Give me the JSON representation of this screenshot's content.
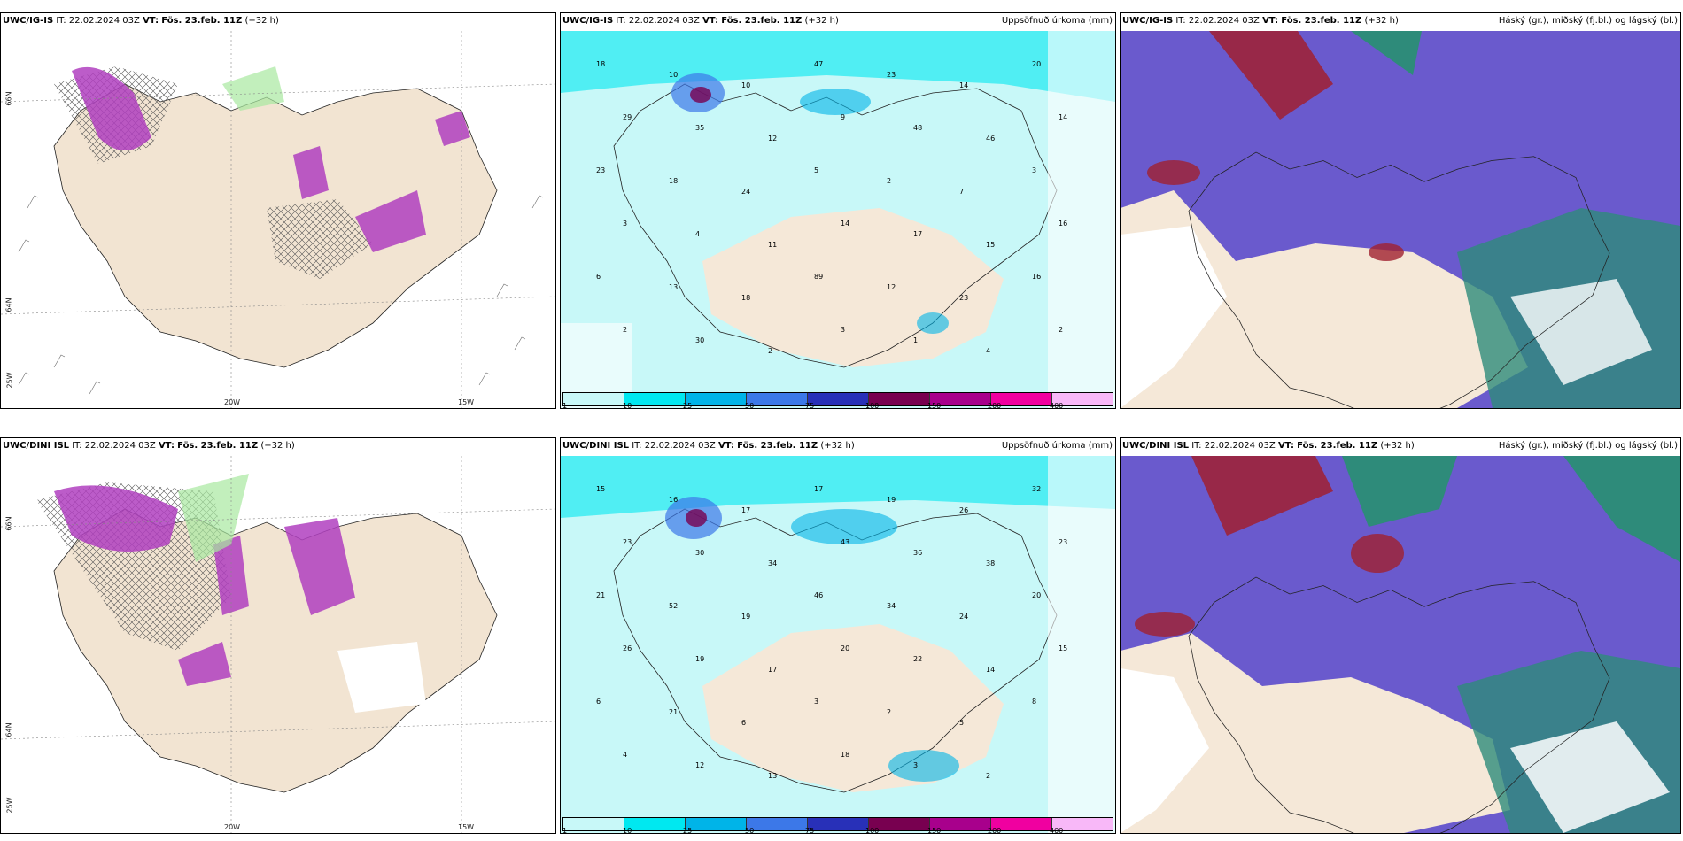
{
  "panels": [
    {
      "model": "UWC/IG-IS",
      "it": "IT: 22.02.2024 03Z",
      "vt_label": "VT:",
      "vt": "Fös. 23.feb. 11Z",
      "lead": "(+32 h)",
      "right": ""
    },
    {
      "model": "UWC/IG-IS",
      "it": "IT: 22.02.2024 03Z",
      "vt_label": "VT:",
      "vt": "Fös. 23.feb. 11Z",
      "lead": "(+32 h)",
      "right": "Uppsöfnuð úrkoma (mm)"
    },
    {
      "model": "UWC/IG-IS",
      "it": "IT: 22.02.2024 03Z",
      "vt_label": "VT:",
      "vt": "Fös. 23.feb. 11Z",
      "lead": "(+32 h)",
      "right": "Háský (gr.), miðský (fj.bl.) og lágský (bl.)"
    },
    {
      "model": "UWC/DINI ISL",
      "it": "IT: 22.02.2024 03Z",
      "vt_label": "VT:",
      "vt": "Fös. 23.feb. 11Z",
      "lead": "(+32 h)",
      "right": ""
    },
    {
      "model": "UWC/DINI ISL",
      "it": "IT: 22.02.2024 03Z",
      "vt_label": "VT:",
      "vt": "Fös. 23.feb. 11Z",
      "lead": "(+32 h)",
      "right": "Uppsöfnuð úrkoma (mm)"
    },
    {
      "model": "UWC/DINI ISL",
      "it": "IT: 22.02.2024 03Z",
      "vt_label": "VT:",
      "vt": "Fös. 23.feb. 11Z",
      "lead": "(+32 h)",
      "right": "Háský (gr.), miðský (fj.bl.) og lágský (bl.)"
    }
  ],
  "axis_labels": {
    "lat66": "66N",
    "lat64": "64N",
    "lon25": "25W",
    "lon20": "20W",
    "lon15": "15W"
  },
  "colorbar": {
    "labels": [
      "1",
      "10",
      "25",
      "50",
      "75",
      "100",
      "150",
      "200",
      "400"
    ],
    "colors": [
      "#c8f8f8",
      "#00e8f0",
      "#00b4e8",
      "#3c78e8",
      "#2830b8",
      "#780050",
      "#a8008c",
      "#f000a0",
      "#f8b8f8"
    ]
  },
  "precip_values_top": [
    "18",
    "10",
    "10",
    "47",
    "23",
    "14",
    "20",
    "29",
    "35",
    "12",
    "9",
    "48",
    "46",
    "14",
    "23",
    "18",
    "24",
    "5",
    "2",
    "7",
    "3",
    "3",
    "4",
    "11",
    "14",
    "17",
    "15",
    "16",
    "6",
    "13",
    "18",
    "89",
    "12",
    "23",
    "16",
    "2",
    "30",
    "2",
    "3",
    "1",
    "4",
    "2"
  ],
  "precip_values_bottom": [
    "15",
    "16",
    "17",
    "17",
    "19",
    "26",
    "32",
    "23",
    "30",
    "34",
    "43",
    "36",
    "38",
    "23",
    "21",
    "52",
    "19",
    "46",
    "34",
    "24",
    "20",
    "26",
    "19",
    "17",
    "20",
    "22",
    "14",
    "15",
    "6",
    "21",
    "6",
    "3",
    "2",
    "5",
    "8",
    "4",
    "12",
    "13",
    "18",
    "3",
    "2"
  ],
  "colors": {
    "land": "#f5e8d8",
    "sea": "#ffffff",
    "cyan": "#a8f4f4",
    "purple": "#b040c0",
    "green": "#a8e8a0",
    "cloud_blue": "#6a5acd",
    "cloud_teal": "#2e8b7a",
    "cloud_red": "#a02030"
  }
}
